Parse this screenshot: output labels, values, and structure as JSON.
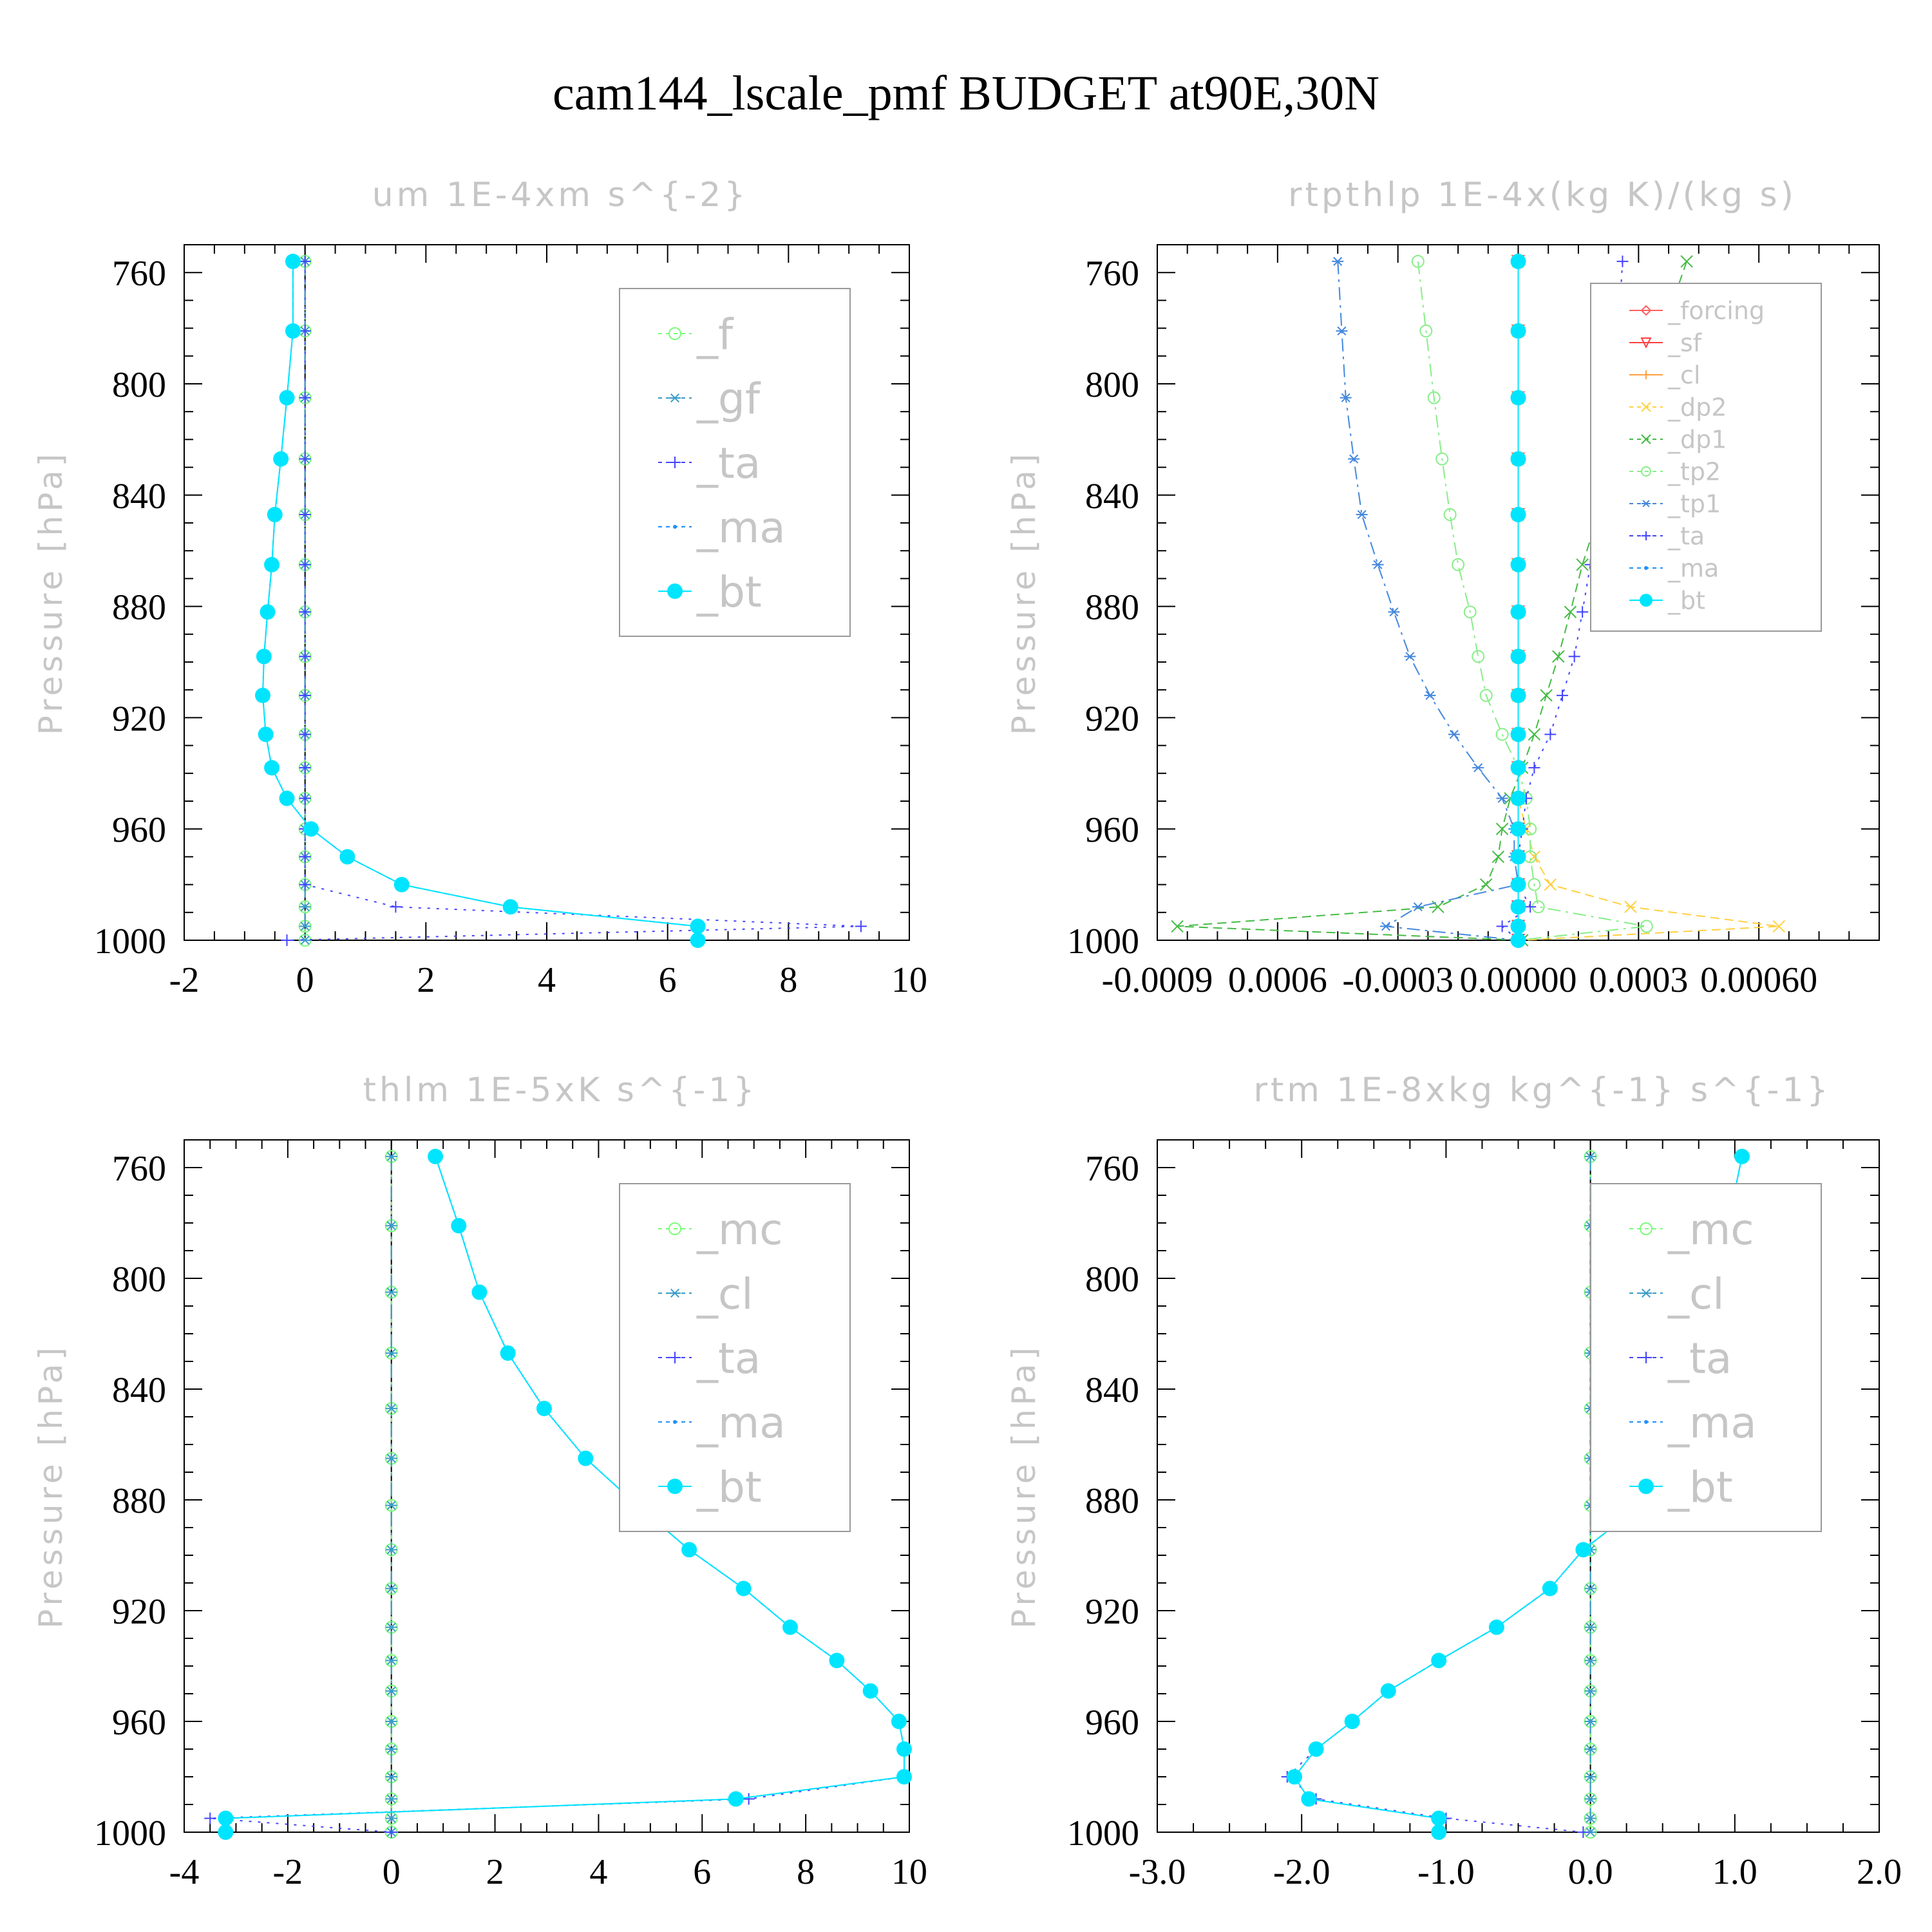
{
  "title": "cam144_lscale_pmf  BUDGET at90E,30N",
  "colors": {
    "f": "#7CFC7C",
    "gf": "#3A9BC8",
    "ta": "#4444FF",
    "ma": "#1E90FF",
    "bt": "#00E5FF",
    "forcing": "#FF6060",
    "sf": "#FF4040",
    "cl": "#FFA040",
    "dp2": "#FFD040",
    "dp1": "#44BB44",
    "tp2": "#88EE88",
    "tp1": "#4488DD",
    "mc": "#7CFC7C"
  },
  "chart_data": [
    {
      "type": "line",
      "title": "um  1E-4xm s^{-2}",
      "ylabel": "Pressure [hPa]",
      "xlim": [
        -2,
        10
      ],
      "ylim": [
        1000,
        750
      ],
      "xticks": [
        "-2",
        "0",
        "2",
        "4",
        "6",
        "8",
        "10"
      ],
      "yticks": [
        "760",
        "800",
        "840",
        "880",
        "920",
        "960",
        "1000"
      ],
      "y": [
        756,
        781,
        805,
        827,
        847,
        865,
        882,
        898,
        912,
        926,
        938,
        949,
        960,
        970,
        980,
        988,
        995,
        1000
      ],
      "series": [
        {
          "name": "_f",
          "key": "f",
          "marker": "circle",
          "values": [
            0,
            0,
            0,
            0,
            0,
            0,
            0,
            0,
            0,
            0,
            0,
            0,
            0,
            0,
            0,
            0,
            0,
            0
          ]
        },
        {
          "name": "_gf",
          "key": "gf",
          "marker": "star",
          "values": [
            0,
            0,
            0,
            0,
            0,
            0,
            0,
            0,
            0,
            0,
            0,
            0,
            0,
            0,
            0,
            0,
            0,
            0
          ]
        },
        {
          "name": "_ta",
          "key": "ta",
          "marker": "plus",
          "values": [
            0,
            0,
            0,
            0,
            0,
            0,
            0,
            0,
            0,
            0,
            0,
            0,
            0,
            0,
            0,
            1.5,
            9.2,
            -0.3
          ]
        },
        {
          "name": "_ma",
          "key": "ma",
          "marker": "dot",
          "values": [
            -0.2,
            -0.2,
            -0.3,
            -0.4,
            -0.5,
            -0.55,
            -0.62,
            -0.68,
            -0.7,
            -0.65,
            -0.55,
            -0.3,
            0.1,
            0.7,
            1.6,
            3.4,
            6.5,
            6.5
          ]
        },
        {
          "name": "_bt",
          "key": "bt",
          "marker": "filled",
          "values": [
            -0.2,
            -0.2,
            -0.3,
            -0.4,
            -0.5,
            -0.55,
            -0.62,
            -0.68,
            -0.7,
            -0.65,
            -0.55,
            -0.3,
            0.1,
            0.7,
            1.6,
            3.4,
            6.5,
            6.5
          ]
        }
      ]
    },
    {
      "type": "line",
      "title": "rtpthlp  1E-4x(kg K)/(kg s)",
      "ylabel": "Pressure [hPa]",
      "xlim": [
        -0.0009,
        0.0009
      ],
      "ylim": [
        1000,
        750
      ],
      "xticks": [
        "-0.0009",
        "0.0006",
        "-0.0003",
        "0.00000",
        "0.0003",
        "0.00060"
      ],
      "yticks": [
        "760",
        "800",
        "840",
        "880",
        "920",
        "960",
        "1000"
      ],
      "y": [
        756,
        781,
        805,
        827,
        847,
        865,
        882,
        898,
        912,
        926,
        938,
        949,
        960,
        970,
        980,
        988,
        995,
        1000
      ],
      "series": [
        {
          "name": "_forcing",
          "key": "forcing",
          "marker": "diamond",
          "values": [
            0,
            0,
            0,
            0,
            0,
            0,
            0,
            0,
            0,
            0,
            0,
            0,
            0,
            0,
            0,
            0,
            0,
            0
          ]
        },
        {
          "name": "_sf",
          "key": "sf",
          "marker": "triangle",
          "values": [
            0,
            0,
            0,
            0,
            0,
            0,
            0,
            0,
            0,
            0,
            0,
            0,
            0,
            0,
            0,
            0,
            0,
            0
          ]
        },
        {
          "name": "_cl",
          "key": "cl",
          "marker": "plus",
          "values": [
            0,
            0,
            0,
            0,
            0,
            0,
            0,
            0,
            0,
            0,
            0,
            0,
            0,
            0,
            0,
            0,
            0,
            0
          ]
        },
        {
          "name": "_dp2",
          "key": "dp2",
          "marker": "x",
          "values": [
            0,
            0,
            0,
            0,
            0,
            0,
            0,
            0,
            0,
            0,
            0,
            0,
            2e-05,
            4e-05,
            8e-05,
            0.00028,
            0.00065,
            1e-05
          ]
        },
        {
          "name": "_dp1",
          "key": "dp1",
          "marker": "x",
          "values": [
            0.00042,
            0.00036,
            0.0003,
            0.00025,
            0.0002,
            0.00016,
            0.00013,
            0.0001,
            7e-05,
            4e-05,
            1e-05,
            -2e-05,
            -4e-05,
            -5e-05,
            -8e-05,
            -0.0002,
            -0.00085,
            1e-05
          ]
        },
        {
          "name": "_tp2",
          "key": "tp2",
          "marker": "circle",
          "values": [
            -0.00025,
            -0.00023,
            -0.00021,
            -0.00019,
            -0.00017,
            -0.00015,
            -0.00012,
            -0.0001,
            -8e-05,
            -4e-05,
            0,
            2e-05,
            3e-05,
            3e-05,
            4e-05,
            5e-05,
            0.00032,
            0
          ]
        },
        {
          "name": "_tp1",
          "key": "tp1",
          "marker": "star",
          "values": [
            -0.00045,
            -0.00044,
            -0.00043,
            -0.00041,
            -0.00039,
            -0.00035,
            -0.00031,
            -0.00027,
            -0.00022,
            -0.00016,
            -0.0001,
            -4e-05,
            -1e-05,
            -1e-05,
            0,
            -0.00025,
            -0.00033,
            0
          ]
        },
        {
          "name": "_ta",
          "key": "ta",
          "marker": "plus",
          "values": [
            0.00026,
            0.00025,
            0.00023,
            0.00022,
            0.0002,
            0.00018,
            0.00016,
            0.00014,
            0.00011,
            8e-05,
            4e-05,
            2e-05,
            1e-05,
            0,
            0,
            3e-05,
            -4e-05,
            0
          ]
        },
        {
          "name": "_ma",
          "key": "ma",
          "marker": "dot",
          "values": [
            0,
            0,
            0,
            0,
            0,
            0,
            0,
            0,
            0,
            0,
            0,
            0,
            0,
            0,
            0,
            0,
            0,
            0
          ]
        },
        {
          "name": "_bt",
          "key": "bt",
          "marker": "filled",
          "values": [
            0,
            0,
            0,
            0,
            0,
            0,
            0,
            0,
            0,
            0,
            0,
            0,
            0,
            0,
            0,
            0,
            0,
            0
          ]
        }
      ]
    },
    {
      "type": "line",
      "title": "thlm  1E-5xK s^{-1}",
      "ylabel": "Pressure [hPa]",
      "xlim": [
        -4,
        10
      ],
      "ylim": [
        1000,
        750
      ],
      "xticks": [
        "-4",
        "-2",
        "0",
        "2",
        "4",
        "6",
        "8",
        "10"
      ],
      "yticks": [
        "760",
        "800",
        "840",
        "880",
        "920",
        "960",
        "1000"
      ],
      "y": [
        756,
        781,
        805,
        827,
        847,
        865,
        882,
        898,
        912,
        926,
        938,
        949,
        960,
        970,
        980,
        988,
        995,
        1000
      ],
      "series": [
        {
          "name": "_mc",
          "key": "mc",
          "marker": "circle",
          "values": [
            0,
            0,
            0,
            0,
            0,
            0,
            0,
            0,
            0,
            0,
            0,
            0,
            0,
            0,
            0,
            0,
            0,
            0
          ]
        },
        {
          "name": "_cl",
          "key": "gf",
          "marker": "star",
          "values": [
            0,
            0,
            0,
            0,
            0,
            0,
            0,
            0,
            0,
            0,
            0,
            0,
            0,
            0,
            0,
            0,
            0,
            0
          ]
        },
        {
          "name": "_ta",
          "key": "ta",
          "marker": "plus",
          "values": [
            0.85,
            1.3,
            1.7,
            2.25,
            2.95,
            3.75,
            4.75,
            5.75,
            6.8,
            7.7,
            8.6,
            9.25,
            9.8,
            9.9,
            9.9,
            6.9,
            -3.5,
            0
          ]
        },
        {
          "name": "_ma",
          "key": "ma",
          "marker": "dot",
          "values": [
            0.85,
            1.3,
            1.7,
            2.25,
            2.95,
            3.75,
            4.75,
            5.75,
            6.8,
            7.7,
            8.6,
            9.25,
            9.8,
            9.9,
            9.9,
            6.65,
            -3.2,
            -3.2
          ]
        },
        {
          "name": "_bt",
          "key": "bt",
          "marker": "filled",
          "values": [
            0.85,
            1.3,
            1.7,
            2.25,
            2.95,
            3.75,
            4.75,
            5.75,
            6.8,
            7.7,
            8.6,
            9.25,
            9.8,
            9.9,
            9.9,
            6.65,
            -3.2,
            -3.2
          ]
        }
      ]
    },
    {
      "type": "line",
      "title": "rtm  1E-8xkg kg^{-1} s^{-1}",
      "ylabel": "Pressure [hPa]",
      "xlim": [
        -3,
        2
      ],
      "ylim": [
        1000,
        750
      ],
      "xticks": [
        "-3.0",
        "-2.0",
        "-1.0",
        "0.0",
        "1.0",
        "2.0"
      ],
      "yticks": [
        "760",
        "800",
        "840",
        "880",
        "920",
        "960",
        "1000"
      ],
      "y": [
        756,
        781,
        805,
        827,
        847,
        865,
        882,
        898,
        912,
        926,
        938,
        949,
        960,
        970,
        980,
        988,
        995,
        1000
      ],
      "series": [
        {
          "name": "_mc",
          "key": "mc",
          "marker": "circle",
          "values": [
            0,
            0,
            0,
            0,
            0,
            0,
            0,
            0,
            0,
            0,
            0,
            0,
            0,
            0,
            0,
            0,
            0,
            0
          ]
        },
        {
          "name": "_cl",
          "key": "gf",
          "marker": "star",
          "values": [
            0,
            0,
            0,
            0,
            0,
            0,
            0,
            0,
            0,
            0,
            0,
            0,
            0,
            0,
            0,
            0,
            0,
            0
          ]
        },
        {
          "name": "_ta",
          "key": "ta",
          "marker": "plus",
          "values": [
            1.05,
            0.95,
            0.9,
            0.78,
            0.65,
            0.52,
            0.35,
            -0.05,
            -0.28,
            -0.65,
            -1.05,
            -1.4,
            -1.65,
            -1.9,
            -2.1,
            -1.9,
            -1.0,
            -0.05
          ]
        },
        {
          "name": "_ma",
          "key": "ma",
          "marker": "dot",
          "values": [
            1.05,
            0.95,
            0.9,
            0.78,
            0.65,
            0.52,
            0.35,
            -0.05,
            -0.28,
            -0.65,
            -1.05,
            -1.4,
            -1.65,
            -1.9,
            -2.05,
            -1.95,
            -1.05,
            -1.05
          ]
        },
        {
          "name": "_bt",
          "key": "bt",
          "marker": "filled",
          "values": [
            1.05,
            0.95,
            0.9,
            0.78,
            0.65,
            0.52,
            0.35,
            -0.05,
            -0.28,
            -0.65,
            -1.05,
            -1.4,
            -1.65,
            -1.9,
            -2.05,
            -1.95,
            -1.05,
            -1.05
          ]
        }
      ]
    }
  ]
}
